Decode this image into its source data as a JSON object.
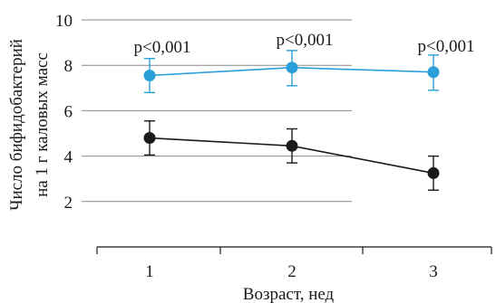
{
  "chart_data": {
    "type": "line",
    "xlabel": "Возраст, нед",
    "ylabel_lines": [
      "Число бифидобактерий",
      "на 1 г каловых масс"
    ],
    "x": [
      1,
      2,
      3
    ],
    "x_tick_labels": [
      "1",
      "2",
      "3"
    ],
    "y_ticks": [
      2,
      4,
      6,
      8,
      10
    ],
    "y_tick_labels": [
      "2",
      "4",
      "6",
      "8",
      "10"
    ],
    "ylim": [
      0,
      10
    ],
    "grid": "horizontal",
    "series": [
      {
        "color": "#2a9fd8",
        "values": [
          7.55,
          7.9,
          7.7
        ],
        "err_low": [
          6.8,
          7.1,
          6.9
        ],
        "err_high": [
          8.3,
          8.65,
          8.45
        ]
      },
      {
        "color": "#1a1a1a",
        "values": [
          4.8,
          4.45,
          3.25
        ],
        "err_low": [
          4.05,
          3.7,
          2.5
        ],
        "err_high": [
          5.55,
          5.2,
          4.0
        ]
      }
    ],
    "annotations": [
      "p<0,001",
      "p<0,001",
      "p<0,001"
    ]
  }
}
